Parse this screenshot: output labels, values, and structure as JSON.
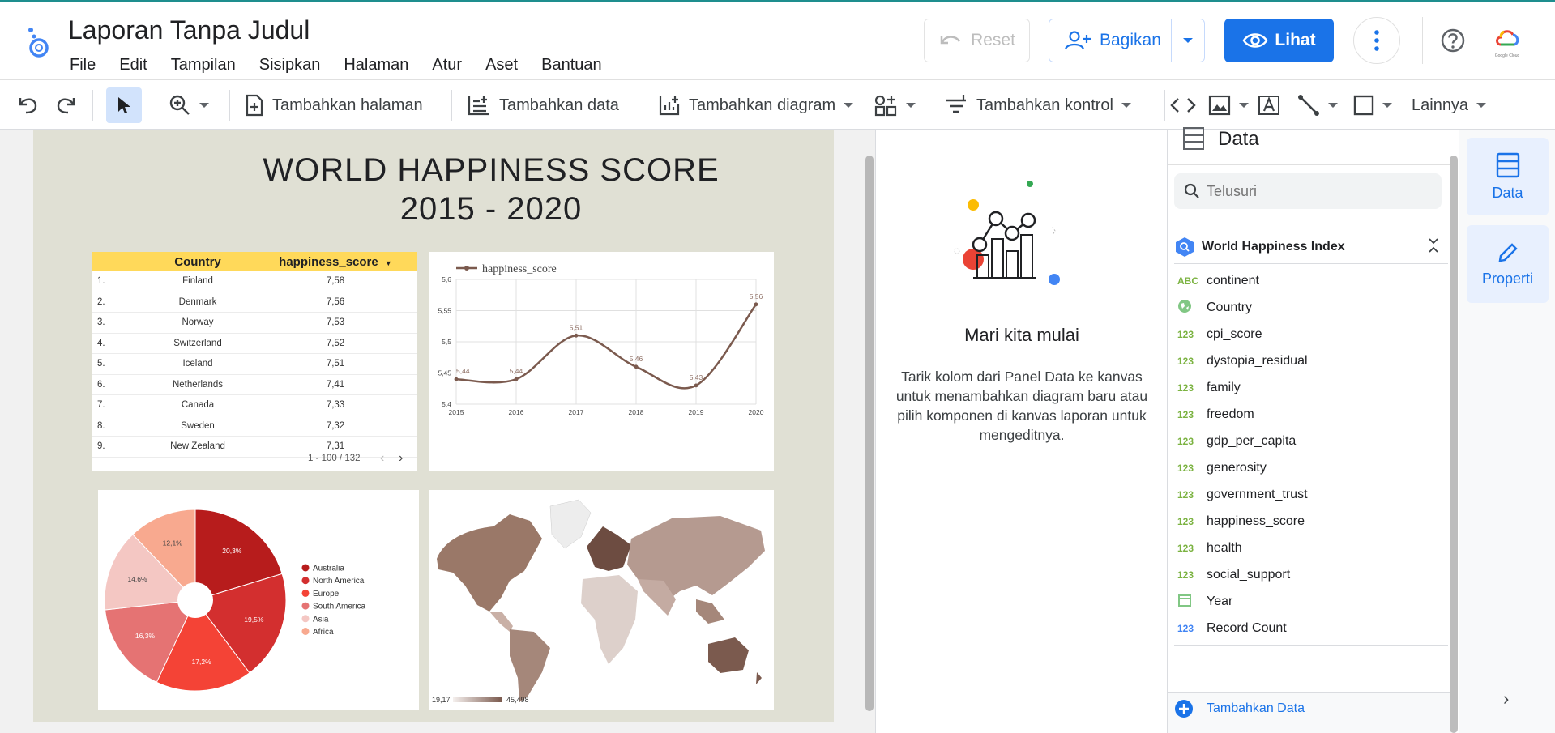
{
  "header": {
    "title": "Laporan Tanpa Judul",
    "menu": [
      "File",
      "Edit",
      "Tampilan",
      "Sisipkan",
      "Halaman",
      "Atur",
      "Aset",
      "Bantuan"
    ],
    "reset_label": "Reset",
    "share_label": "Bagikan",
    "view_label": "Lihat",
    "cloud_label": "Google Cloud"
  },
  "toolbar": {
    "add_page": "Tambahkan halaman",
    "add_data": "Tambahkan data",
    "add_chart": "Tambahkan diagram",
    "add_control": "Tambahkan kontrol",
    "more": "Lainnya"
  },
  "report": {
    "title_line1": "WORLD HAPPINESS SCORE",
    "title_line2": "2015 - 2020",
    "table": {
      "col_country": "Country",
      "col_score": "happiness_score",
      "rows": [
        {
          "n": "1.",
          "country": "Finland",
          "score": "7,58"
        },
        {
          "n": "2.",
          "country": "Denmark",
          "score": "7,56"
        },
        {
          "n": "3.",
          "country": "Norway",
          "score": "7,53"
        },
        {
          "n": "4.",
          "country": "Switzerland",
          "score": "7,52"
        },
        {
          "n": "5.",
          "country": "Iceland",
          "score": "7,51"
        },
        {
          "n": "6.",
          "country": "Netherlands",
          "score": "7,41"
        },
        {
          "n": "7.",
          "country": "Canada",
          "score": "7,33"
        },
        {
          "n": "8.",
          "country": "Sweden",
          "score": "7,32"
        },
        {
          "n": "9.",
          "country": "New Zealand",
          "score": "7,31"
        }
      ],
      "pagination": "1 - 100 / 132"
    },
    "map_legend": {
      "min": "19,17",
      "max": "45,498"
    }
  },
  "chart_data": [
    {
      "type": "line",
      "x": [
        "2015",
        "2016",
        "2017",
        "2018",
        "2019",
        "2020"
      ],
      "series": [
        {
          "name": "happiness_score",
          "values": [
            5.44,
            5.44,
            5.51,
            5.46,
            5.43,
            5.56
          ],
          "labels": [
            "5,44",
            "5,44",
            "5,51",
            "5,46",
            "5,43",
            "5,56"
          ]
        }
      ],
      "ylim": [
        5.4,
        5.6
      ],
      "yticks": [
        "5,4",
        "5,45",
        "5,5",
        "5,55",
        "5,6"
      ],
      "color": "#7b5a4e",
      "legend": "top-left",
      "grid": true
    },
    {
      "type": "pie",
      "categories": [
        "Australia",
        "North America",
        "Europe",
        "South America",
        "Asia",
        "Africa"
      ],
      "values": [
        20.3,
        19.5,
        17.2,
        16.3,
        14.6,
        12.1
      ],
      "labels": [
        "20,3%",
        "19,5%",
        "17,2%",
        "16,3%",
        "14,6%",
        "12,1%"
      ],
      "colors": [
        "#b71c1c",
        "#d32f2f",
        "#f44336",
        "#e57373",
        "#f4c7c3",
        "#f8a98f"
      ],
      "legend": "right",
      "donut": true
    }
  ],
  "middle": {
    "title": "Mari kita mulai",
    "text": "Tarik kolom dari Panel Data ke kanvas untuk menambahkan diagram baru atau pilih komponen di kanvas laporan untuk mengeditnya."
  },
  "data_panel": {
    "title": "Data",
    "search_placeholder": "Telusuri",
    "datasource": "World Happiness Index",
    "fields": [
      {
        "type": "ABC",
        "name": "continent"
      },
      {
        "type": "geo",
        "name": "Country"
      },
      {
        "type": "123",
        "name": "cpi_score"
      },
      {
        "type": "123",
        "name": "dystopia_residual"
      },
      {
        "type": "123",
        "name": "family"
      },
      {
        "type": "123",
        "name": "freedom"
      },
      {
        "type": "123",
        "name": "gdp_per_capita"
      },
      {
        "type": "123",
        "name": "generosity"
      },
      {
        "type": "123",
        "name": "government_trust"
      },
      {
        "type": "123",
        "name": "happiness_score"
      },
      {
        "type": "123",
        "name": "health"
      },
      {
        "type": "123",
        "name": "social_support"
      },
      {
        "type": "date",
        "name": "Year"
      },
      {
        "type": "123",
        "name": "Record Count"
      }
    ],
    "add_data": "Tambahkan Data"
  },
  "rail": {
    "data_label": "Data",
    "props_label": "Properti"
  },
  "colors": {
    "accent": "#1a73e8",
    "table_header": "#ffd95a",
    "line": "#7b5a4e",
    "report_bg": "#e0e0d4"
  }
}
